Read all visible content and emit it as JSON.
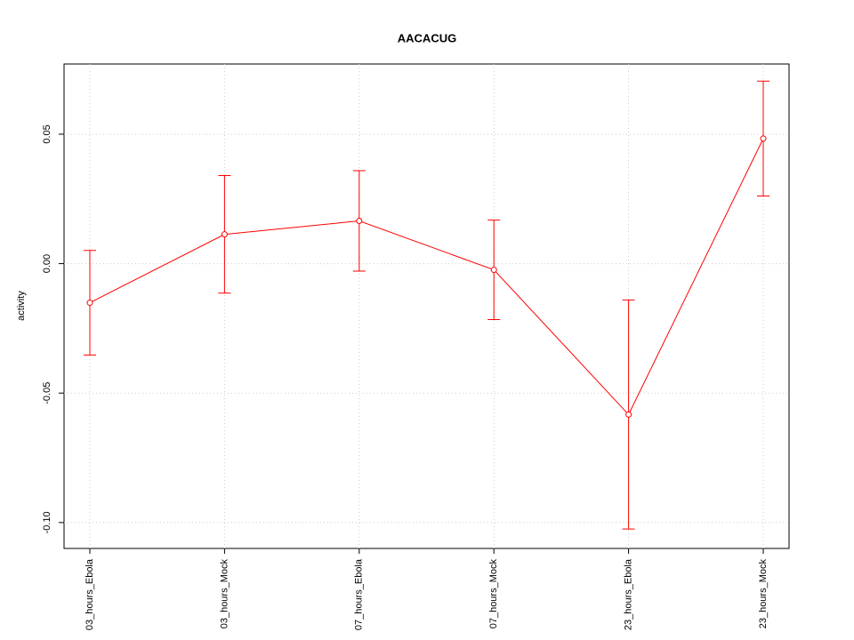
{
  "chart_data": {
    "type": "line",
    "title": "AACACUG",
    "y_label": "activity",
    "categories": [
      "03_hours_Ebola",
      "03_hours_Mock",
      "07_hours_Ebola",
      "07_hours_Mock",
      "23_hours_Ebola",
      "23_hours_Mock"
    ],
    "series": [
      {
        "name": "activity",
        "color": "#ff0000",
        "values": [
          -0.0151,
          0.0113,
          0.0165,
          -0.0024,
          -0.0583,
          0.0483
        ],
        "errors": [
          0.0202,
          0.0227,
          0.0194,
          0.0192,
          0.0442,
          0.0222
        ]
      }
    ],
    "ylim": [
      -0.11,
      0.0771
    ],
    "yticks": [
      {
        "value": -0.1,
        "label": "-0.10"
      },
      {
        "value": -0.05,
        "label": "-0.05"
      },
      {
        "value": 0,
        "label": "0.00"
      },
      {
        "value": 0.05,
        "label": "0.05"
      }
    ],
    "grid": true
  }
}
